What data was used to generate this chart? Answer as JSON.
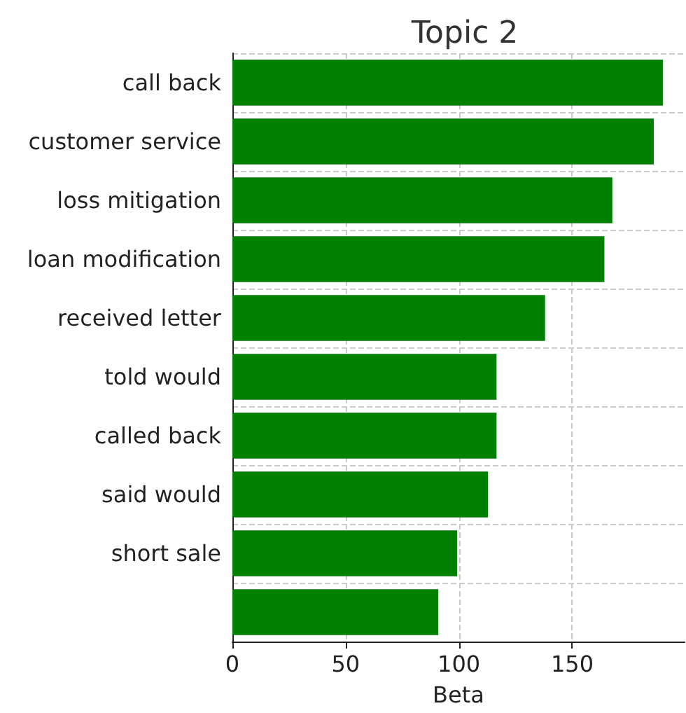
{
  "chart_data": {
    "type": "bar",
    "orientation": "horizontal",
    "title": "Topic 2",
    "xlabel": "Beta",
    "categories": [
      "call back",
      "customer service",
      "loss mitigation",
      "loan modification",
      "received letter",
      "told would",
      "called back",
      "said would",
      "short sale",
      null
    ],
    "values": [
      190,
      186,
      167.7,
      164.2,
      138,
      116.6,
      116.6,
      112.8,
      99.2,
      90.9
    ],
    "color": "#008000",
    "xlim": [
      0,
      199.6
    ],
    "xticks": [
      0,
      50,
      100,
      150
    ],
    "grid": true
  }
}
